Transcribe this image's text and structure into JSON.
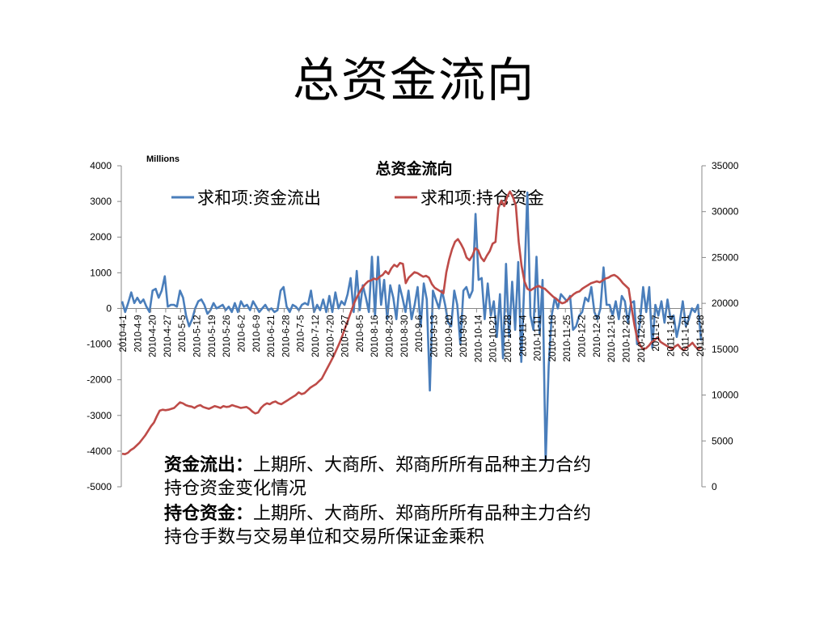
{
  "slide": {
    "title": "总资金流向"
  },
  "notes": [
    {
      "term": "资金流出：",
      "text": "上期所、大商所、郑商所所有品种主力合约持仓资金变化情况"
    },
    {
      "term": "持仓资金：",
      "text": "上期所、大商所、郑商所所有品种主力合约持仓手数与交易单位和交易所保证金乘积"
    }
  ],
  "chart_data": {
    "type": "line",
    "title": "总资金流向",
    "units_label": "Millions",
    "legend_position": "top",
    "grid": false,
    "colors": {
      "outflow": "#4a7ebb",
      "holding": "#be4b48"
    },
    "y_left": {
      "min": -5000,
      "max": 4000,
      "step": 1000
    },
    "y_right": {
      "min": 0,
      "max": 35000,
      "step": 5000
    },
    "x_tick_labels": [
      "2010-4-1",
      "2010-4-9",
      "2010-4-20",
      "2010-4-27",
      "2010-5-5",
      "2010-5-12",
      "2010-5-19",
      "2010-5-26",
      "2010-6-2",
      "2010-6-9",
      "2010-6-21",
      "2010-6-28",
      "2010-7-5",
      "2010-7-12",
      "2010-7-20",
      "2010-7-27",
      "2010-8-5",
      "2010-8-16",
      "2010-8-23",
      "2010-8-30",
      "2010-9-6",
      "2010-9-13",
      "2010-9-20",
      "2010-9-30",
      "2010-10-14",
      "2010-10-21",
      "2010-10-28",
      "2010-11-4",
      "2010-11-11",
      "2010-11-18",
      "2010-11-25",
      "2010-12-2",
      "2010-12-9",
      "2010-12-16",
      "2010-12-23",
      "2010-12-30",
      "2011-1-7",
      "2011-1-14",
      "2011-1-21",
      "2011-1-28"
    ],
    "series": [
      {
        "name": "求和项:资金流出",
        "axis": "left",
        "color": "#4a7ebb",
        "values": [
          200,
          -100,
          150,
          450,
          150,
          300,
          150,
          250,
          50,
          -100,
          500,
          550,
          300,
          500,
          900,
          50,
          100,
          100,
          50,
          500,
          300,
          -200,
          -500,
          -300,
          0,
          200,
          250,
          100,
          -150,
          -50,
          150,
          0,
          50,
          100,
          -50,
          50,
          -100,
          150,
          -100,
          200,
          50,
          100,
          -50,
          200,
          50,
          -100,
          0,
          100,
          -50,
          0,
          -100,
          -50,
          500,
          600,
          50,
          -100,
          100,
          50,
          -50,
          100,
          150,
          100,
          500,
          -100,
          100,
          -50,
          250,
          -100,
          350,
          -100,
          450,
          0,
          200,
          100,
          400,
          850,
          -100,
          1050,
          -50,
          650,
          300,
          -100,
          1450,
          -200,
          1450,
          100,
          800,
          -300,
          650,
          300,
          -300,
          650,
          300,
          -100,
          500,
          -300,
          100,
          600,
          -500,
          700,
          250,
          -2300,
          500,
          250,
          0,
          500,
          100,
          -400,
          -500,
          500,
          100,
          -1000,
          500,
          600,
          300,
          500,
          2650,
          800,
          850,
          -300,
          700,
          -200,
          200,
          -800,
          400,
          -1400,
          1250,
          -800,
          750,
          -600,
          1300,
          -1500,
          700,
          3250,
          -200,
          -600,
          1450,
          -700,
          800,
          -4300,
          -1600,
          -200,
          300,
          0,
          400,
          300,
          200,
          350,
          -600,
          -500,
          -200,
          -100,
          300,
          200,
          600,
          -100,
          -300,
          0,
          1150,
          100,
          100,
          -200,
          200,
          -300,
          350,
          200,
          -400,
          150,
          200,
          -1000,
          -350,
          600,
          -100,
          600,
          -1100,
          100,
          -200,
          200,
          -400,
          250,
          -300,
          -200,
          -800,
          -400,
          200,
          -500,
          -300,
          0,
          -100,
          100,
          -900
        ]
      },
      {
        "name": "求和项:持仓资金",
        "axis": "right",
        "color": "#be4b48",
        "values": [
          3600,
          3550,
          3700,
          4000,
          4200,
          4500,
          4800,
          5200,
          5600,
          6100,
          6600,
          7000,
          7700,
          8300,
          8400,
          8350,
          8400,
          8500,
          8600,
          8900,
          9200,
          9100,
          8900,
          8800,
          8750,
          8600,
          8800,
          8900,
          8700,
          8600,
          8500,
          8650,
          8800,
          8700,
          8600,
          8800,
          8700,
          8750,
          8900,
          8800,
          8700,
          8600,
          8650,
          8700,
          8500,
          8200,
          8000,
          8100,
          8600,
          8900,
          9100,
          9000,
          9200,
          9300,
          9100,
          9000,
          9200,
          9400,
          9600,
          9800,
          10000,
          10300,
          10100,
          10200,
          10500,
          10800,
          11000,
          11200,
          11500,
          11800,
          12400,
          13000,
          13600,
          14200,
          14900,
          15600,
          16400,
          17300,
          18100,
          19000,
          19900,
          20600,
          21200,
          21700,
          22100,
          22400,
          22500,
          22700,
          22600,
          22900,
          23100,
          23500,
          23200,
          23800,
          24200,
          24000,
          24400,
          24300,
          22200,
          22800,
          23100,
          23400,
          23300,
          23100,
          22900,
          23000,
          22800,
          22100,
          21700,
          21500,
          21300,
          21100,
          23400,
          24800,
          25900,
          26700,
          27000,
          26500,
          25900,
          25000,
          24700,
          25200,
          26000,
          25800,
          25000,
          24600,
          25200,
          25700,
          26500,
          26700,
          30400,
          31200,
          30600,
          31600,
          32200,
          31600,
          30700,
          26700,
          24100,
          22400,
          21600,
          21400,
          21600,
          21800,
          21900,
          21700,
          21600,
          21300,
          21000,
          20700,
          20500,
          20200,
          20000,
          20100,
          20400,
          20700,
          21000,
          21200,
          21300,
          21600,
          21800,
          22000,
          22200,
          22300,
          22400,
          22300,
          22500,
          22700,
          22800,
          23000,
          23100,
          22900,
          22600,
          22200,
          21900,
          21600,
          19500,
          17600,
          16100,
          15400,
          15000,
          15100,
          15400,
          15800,
          16000,
          16300,
          15800,
          15600,
          15400,
          15200,
          15000,
          15300,
          15500,
          15100,
          14900,
          15200,
          15400,
          15700,
          15300,
          15000,
          15200
        ]
      }
    ]
  }
}
